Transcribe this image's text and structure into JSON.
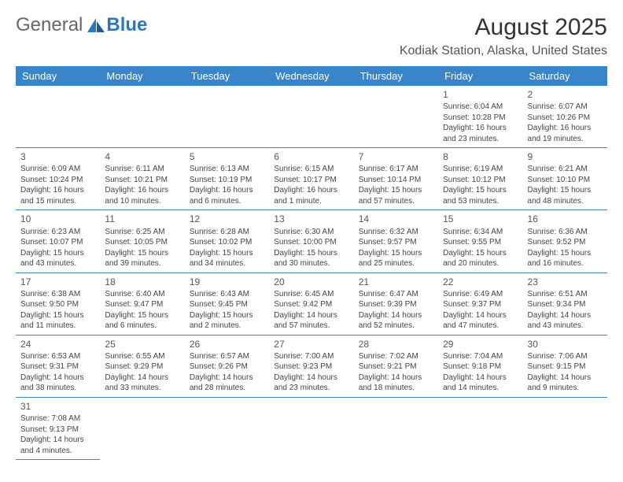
{
  "logo": {
    "text1": "General",
    "text2": "Blue"
  },
  "title": "August 2025",
  "location": "Kodiak Station, Alaska, United States",
  "colors": {
    "header_bg": "#3a85c9",
    "header_text": "#ffffff",
    "accent": "#2b77c0",
    "text": "#444444"
  },
  "day_headers": [
    "Sunday",
    "Monday",
    "Tuesday",
    "Wednesday",
    "Thursday",
    "Friday",
    "Saturday"
  ],
  "weeks": [
    [
      null,
      null,
      null,
      null,
      null,
      {
        "d": "1",
        "sr": "Sunrise: 6:04 AM",
        "ss": "Sunset: 10:28 PM",
        "dl": "Daylight: 16 hours and 23 minutes."
      },
      {
        "d": "2",
        "sr": "Sunrise: 6:07 AM",
        "ss": "Sunset: 10:26 PM",
        "dl": "Daylight: 16 hours and 19 minutes."
      }
    ],
    [
      {
        "d": "3",
        "sr": "Sunrise: 6:09 AM",
        "ss": "Sunset: 10:24 PM",
        "dl": "Daylight: 16 hours and 15 minutes."
      },
      {
        "d": "4",
        "sr": "Sunrise: 6:11 AM",
        "ss": "Sunset: 10:21 PM",
        "dl": "Daylight: 16 hours and 10 minutes."
      },
      {
        "d": "5",
        "sr": "Sunrise: 6:13 AM",
        "ss": "Sunset: 10:19 PM",
        "dl": "Daylight: 16 hours and 6 minutes."
      },
      {
        "d": "6",
        "sr": "Sunrise: 6:15 AM",
        "ss": "Sunset: 10:17 PM",
        "dl": "Daylight: 16 hours and 1 minute."
      },
      {
        "d": "7",
        "sr": "Sunrise: 6:17 AM",
        "ss": "Sunset: 10:14 PM",
        "dl": "Daylight: 15 hours and 57 minutes."
      },
      {
        "d": "8",
        "sr": "Sunrise: 6:19 AM",
        "ss": "Sunset: 10:12 PM",
        "dl": "Daylight: 15 hours and 53 minutes."
      },
      {
        "d": "9",
        "sr": "Sunrise: 6:21 AM",
        "ss": "Sunset: 10:10 PM",
        "dl": "Daylight: 15 hours and 48 minutes."
      }
    ],
    [
      {
        "d": "10",
        "sr": "Sunrise: 6:23 AM",
        "ss": "Sunset: 10:07 PM",
        "dl": "Daylight: 15 hours and 43 minutes."
      },
      {
        "d": "11",
        "sr": "Sunrise: 6:25 AM",
        "ss": "Sunset: 10:05 PM",
        "dl": "Daylight: 15 hours and 39 minutes."
      },
      {
        "d": "12",
        "sr": "Sunrise: 6:28 AM",
        "ss": "Sunset: 10:02 PM",
        "dl": "Daylight: 15 hours and 34 minutes."
      },
      {
        "d": "13",
        "sr": "Sunrise: 6:30 AM",
        "ss": "Sunset: 10:00 PM",
        "dl": "Daylight: 15 hours and 30 minutes."
      },
      {
        "d": "14",
        "sr": "Sunrise: 6:32 AM",
        "ss": "Sunset: 9:57 PM",
        "dl": "Daylight: 15 hours and 25 minutes."
      },
      {
        "d": "15",
        "sr": "Sunrise: 6:34 AM",
        "ss": "Sunset: 9:55 PM",
        "dl": "Daylight: 15 hours and 20 minutes."
      },
      {
        "d": "16",
        "sr": "Sunrise: 6:36 AM",
        "ss": "Sunset: 9:52 PM",
        "dl": "Daylight: 15 hours and 16 minutes."
      }
    ],
    [
      {
        "d": "17",
        "sr": "Sunrise: 6:38 AM",
        "ss": "Sunset: 9:50 PM",
        "dl": "Daylight: 15 hours and 11 minutes."
      },
      {
        "d": "18",
        "sr": "Sunrise: 6:40 AM",
        "ss": "Sunset: 9:47 PM",
        "dl": "Daylight: 15 hours and 6 minutes."
      },
      {
        "d": "19",
        "sr": "Sunrise: 6:43 AM",
        "ss": "Sunset: 9:45 PM",
        "dl": "Daylight: 15 hours and 2 minutes."
      },
      {
        "d": "20",
        "sr": "Sunrise: 6:45 AM",
        "ss": "Sunset: 9:42 PM",
        "dl": "Daylight: 14 hours and 57 minutes."
      },
      {
        "d": "21",
        "sr": "Sunrise: 6:47 AM",
        "ss": "Sunset: 9:39 PM",
        "dl": "Daylight: 14 hours and 52 minutes."
      },
      {
        "d": "22",
        "sr": "Sunrise: 6:49 AM",
        "ss": "Sunset: 9:37 PM",
        "dl": "Daylight: 14 hours and 47 minutes."
      },
      {
        "d": "23",
        "sr": "Sunrise: 6:51 AM",
        "ss": "Sunset: 9:34 PM",
        "dl": "Daylight: 14 hours and 43 minutes."
      }
    ],
    [
      {
        "d": "24",
        "sr": "Sunrise: 6:53 AM",
        "ss": "Sunset: 9:31 PM",
        "dl": "Daylight: 14 hours and 38 minutes."
      },
      {
        "d": "25",
        "sr": "Sunrise: 6:55 AM",
        "ss": "Sunset: 9:29 PM",
        "dl": "Daylight: 14 hours and 33 minutes."
      },
      {
        "d": "26",
        "sr": "Sunrise: 6:57 AM",
        "ss": "Sunset: 9:26 PM",
        "dl": "Daylight: 14 hours and 28 minutes."
      },
      {
        "d": "27",
        "sr": "Sunrise: 7:00 AM",
        "ss": "Sunset: 9:23 PM",
        "dl": "Daylight: 14 hours and 23 minutes."
      },
      {
        "d": "28",
        "sr": "Sunrise: 7:02 AM",
        "ss": "Sunset: 9:21 PM",
        "dl": "Daylight: 14 hours and 18 minutes."
      },
      {
        "d": "29",
        "sr": "Sunrise: 7:04 AM",
        "ss": "Sunset: 9:18 PM",
        "dl": "Daylight: 14 hours and 14 minutes."
      },
      {
        "d": "30",
        "sr": "Sunrise: 7:06 AM",
        "ss": "Sunset: 9:15 PM",
        "dl": "Daylight: 14 hours and 9 minutes."
      }
    ],
    [
      {
        "d": "31",
        "sr": "Sunrise: 7:08 AM",
        "ss": "Sunset: 9:13 PM",
        "dl": "Daylight: 14 hours and 4 minutes."
      },
      null,
      null,
      null,
      null,
      null,
      null
    ]
  ]
}
